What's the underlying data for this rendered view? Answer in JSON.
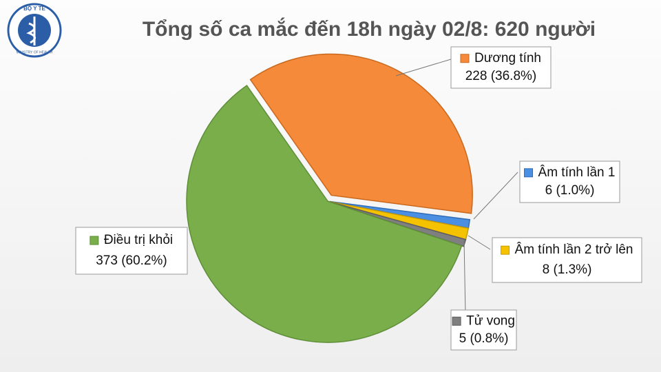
{
  "logo": {
    "top": "BỘ Y TẾ",
    "bottom": "MINISTRY OF HEALTH"
  },
  "chart_data": {
    "type": "pie",
    "title": "Tổng số ca mắc đến 18h ngày 02/8: 620 người",
    "categories": [
      "Dương tính",
      "Âm tính lần 1",
      "Âm tính lần 2 trở lên",
      "Tử vong",
      "Điều trị khỏi"
    ],
    "values": [
      228,
      6,
      8,
      5,
      373
    ],
    "value_labels": [
      "228 (36.8%)",
      "6 (1.0%)",
      "8 (1.3%)",
      "5 (0.8%)",
      "373 (60.2%)"
    ],
    "colors": [
      "#f48a3a",
      "#4a8fe2",
      "#f5c200",
      "#7f7f7f",
      "#7aae4b"
    ]
  }
}
